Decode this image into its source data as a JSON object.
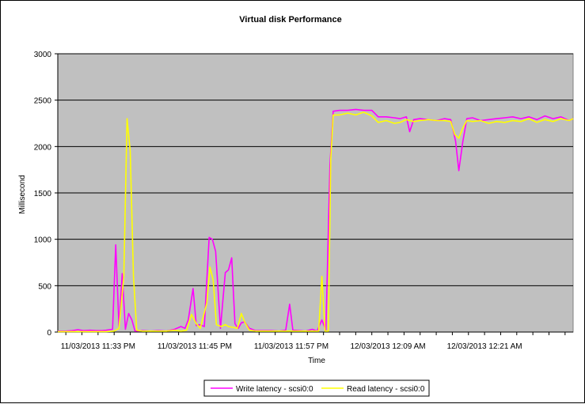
{
  "chart_data": {
    "type": "line",
    "title": "Virtual disk Performance",
    "xlabel": "Time",
    "ylabel": "Millisecond",
    "ylim": [
      0,
      3000
    ],
    "yticks": [
      0,
      500,
      1000,
      1500,
      2000,
      2500,
      3000
    ],
    "xtick_labels": [
      "11/03/2013 11:33 PM",
      "11/03/2013 11:45 PM",
      "11/03/2013 11:57 PM",
      "12/03/2013 12:09 AM",
      "12/03/2013 12:21 AM"
    ],
    "xtick_minutes": [
      0,
      12,
      24,
      36,
      48
    ],
    "xlim_minutes": [
      -5,
      59
    ],
    "grid": "horizontal",
    "plot_background": "#c0c0c0",
    "legend_position": "bottom",
    "series": [
      {
        "name": "Write latency - scsi0:0",
        "color": "#ff00ff",
        "points": [
          [
            -5,
            10
          ],
          [
            -4,
            10
          ],
          [
            -3.2,
            15
          ],
          [
            -2.5,
            25
          ],
          [
            -1.8,
            15
          ],
          [
            -1,
            20
          ],
          [
            -0.2,
            15
          ],
          [
            0.5,
            15
          ],
          [
            1,
            20
          ],
          [
            1.8,
            30
          ],
          [
            2.2,
            940
          ],
          [
            2.6,
            60
          ],
          [
            3,
            630
          ],
          [
            3.4,
            30
          ],
          [
            3.8,
            200
          ],
          [
            4.2,
            130
          ],
          [
            4.6,
            10
          ],
          [
            5.5,
            15
          ],
          [
            6.5,
            10
          ],
          [
            7.5,
            15
          ],
          [
            8.5,
            10
          ],
          [
            9.5,
            30
          ],
          [
            10.3,
            60
          ],
          [
            10.8,
            40
          ],
          [
            11.2,
            130
          ],
          [
            11.8,
            470
          ],
          [
            12.2,
            70
          ],
          [
            12.6,
            80
          ],
          [
            13.2,
            60
          ],
          [
            13.8,
            1020
          ],
          [
            14.2,
            1000
          ],
          [
            14.6,
            870
          ],
          [
            15.2,
            40
          ],
          [
            15.8,
            640
          ],
          [
            16.2,
            670
          ],
          [
            16.6,
            800
          ],
          [
            17,
            90
          ],
          [
            17.4,
            40
          ],
          [
            17.8,
            100
          ],
          [
            18.2,
            110
          ],
          [
            18.8,
            40
          ],
          [
            19.6,
            15
          ],
          [
            20.5,
            15
          ],
          [
            21.5,
            15
          ],
          [
            22.5,
            10
          ],
          [
            23.3,
            20
          ],
          [
            23.8,
            300
          ],
          [
            24.2,
            20
          ],
          [
            25,
            15
          ],
          [
            25.8,
            10
          ],
          [
            26.6,
            30
          ],
          [
            27.2,
            10
          ],
          [
            27.8,
            130
          ],
          [
            28.3,
            20
          ],
          [
            28.8,
            1800
          ],
          [
            29.2,
            2380
          ],
          [
            30,
            2390
          ],
          [
            31,
            2390
          ],
          [
            32,
            2400
          ],
          [
            33,
            2390
          ],
          [
            34,
            2390
          ],
          [
            34.8,
            2320
          ],
          [
            35.8,
            2320
          ],
          [
            36.8,
            2310
          ],
          [
            37.5,
            2300
          ],
          [
            38.3,
            2320
          ],
          [
            38.7,
            2160
          ],
          [
            39.2,
            2290
          ],
          [
            40,
            2300
          ],
          [
            41,
            2290
          ],
          [
            42,
            2280
          ],
          [
            43,
            2300
          ],
          [
            43.8,
            2290
          ],
          [
            44.4,
            2060
          ],
          [
            44.8,
            1740
          ],
          [
            45.3,
            2050
          ],
          [
            45.8,
            2300
          ],
          [
            46.5,
            2310
          ],
          [
            47.5,
            2280
          ],
          [
            48.5,
            2290
          ],
          [
            49.5,
            2300
          ],
          [
            50.5,
            2310
          ],
          [
            51.5,
            2320
          ],
          [
            52.5,
            2300
          ],
          [
            53.5,
            2320
          ],
          [
            54.5,
            2290
          ],
          [
            55.5,
            2330
          ],
          [
            56.5,
            2300
          ],
          [
            57.5,
            2320
          ],
          [
            58.5,
            2280
          ],
          [
            59,
            2300
          ]
        ]
      },
      {
        "name": "Read latency - scsi0:0",
        "color": "#ffff00",
        "points": [
          [
            -5,
            5
          ],
          [
            -4,
            5
          ],
          [
            -3,
            5
          ],
          [
            -2,
            5
          ],
          [
            -1,
            5
          ],
          [
            0,
            5
          ],
          [
            1,
            5
          ],
          [
            2,
            10
          ],
          [
            2.6,
            40
          ],
          [
            3.2,
            600
          ],
          [
            3.6,
            2300
          ],
          [
            4,
            1950
          ],
          [
            4.4,
            600
          ],
          [
            4.8,
            20
          ],
          [
            5.5,
            10
          ],
          [
            6.5,
            10
          ],
          [
            7.5,
            10
          ],
          [
            8.5,
            10
          ],
          [
            9.5,
            20
          ],
          [
            10.3,
            10
          ],
          [
            11,
            20
          ],
          [
            11.6,
            190
          ],
          [
            12.2,
            90
          ],
          [
            12.7,
            40
          ],
          [
            13.5,
            310
          ],
          [
            13.9,
            700
          ],
          [
            14.3,
            560
          ],
          [
            14.7,
            80
          ],
          [
            15.3,
            60
          ],
          [
            15.8,
            80
          ],
          [
            16.2,
            60
          ],
          [
            16.8,
            50
          ],
          [
            17.3,
            40
          ],
          [
            17.8,
            200
          ],
          [
            18.2,
            110
          ],
          [
            18.8,
            20
          ],
          [
            19.6,
            10
          ],
          [
            20.6,
            10
          ],
          [
            21.6,
            10
          ],
          [
            22.6,
            10
          ],
          [
            23.6,
            10
          ],
          [
            24.6,
            10
          ],
          [
            25.6,
            10
          ],
          [
            26.6,
            10
          ],
          [
            27.4,
            10
          ],
          [
            27.8,
            600
          ],
          [
            28.2,
            10
          ],
          [
            28.6,
            10
          ],
          [
            28.9,
            1860
          ],
          [
            29.2,
            2340
          ],
          [
            30,
            2340
          ],
          [
            31,
            2360
          ],
          [
            32,
            2340
          ],
          [
            33,
            2370
          ],
          [
            34,
            2330
          ],
          [
            34.8,
            2260
          ],
          [
            35.8,
            2280
          ],
          [
            36.8,
            2250
          ],
          [
            37.5,
            2260
          ],
          [
            38.3,
            2290
          ],
          [
            39.2,
            2270
          ],
          [
            40,
            2280
          ],
          [
            41,
            2290
          ],
          [
            42,
            2280
          ],
          [
            43,
            2280
          ],
          [
            43.8,
            2270
          ],
          [
            44.3,
            2130
          ],
          [
            44.8,
            2090
          ],
          [
            45.3,
            2200
          ],
          [
            45.8,
            2280
          ],
          [
            46.5,
            2270
          ],
          [
            47.5,
            2280
          ],
          [
            48.5,
            2250
          ],
          [
            49.5,
            2270
          ],
          [
            50.5,
            2260
          ],
          [
            51.5,
            2280
          ],
          [
            52.5,
            2270
          ],
          [
            53.5,
            2300
          ],
          [
            54.5,
            2260
          ],
          [
            55.5,
            2290
          ],
          [
            56.5,
            2270
          ],
          [
            57.5,
            2300
          ],
          [
            58.5,
            2280
          ],
          [
            59,
            2300
          ]
        ]
      }
    ]
  }
}
